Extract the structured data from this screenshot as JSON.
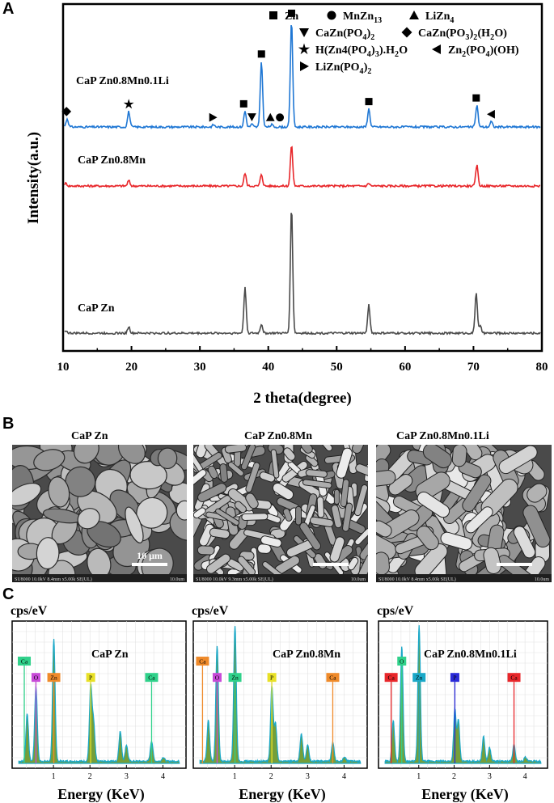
{
  "panels": {
    "a": "A",
    "b": "B",
    "c": "C"
  },
  "colors": {
    "blue": "#1f77d4",
    "red": "#e8262a",
    "gray": "#4a4a4a",
    "green": "#6e9a2e",
    "cyan": "#1aa8c8"
  },
  "chart_data": [
    {
      "type": "line",
      "xlabel": "2 theta(degree)",
      "ylabel": "Intensity(a.u.)",
      "xlim": [
        10,
        80
      ],
      "xticks": [
        "10",
        "20",
        "30",
        "40",
        "50",
        "60",
        "70",
        "80"
      ],
      "legend": [
        {
          "marker": "square",
          "label": "Zn"
        },
        {
          "marker": "circle",
          "label": "MnZn",
          "sub": "13"
        },
        {
          "marker": "triangle-up",
          "label": "LiZn",
          "sub": "4"
        },
        {
          "marker": "triangle-down",
          "label": "CaZn(PO",
          "sub": "4",
          "tail": ")",
          "sub2": "2"
        },
        {
          "marker": "diamond",
          "label": "CaZn(PO",
          "sub": "3",
          "tail": ")",
          "sub2": "2",
          "tail2": "(H",
          "sub3": "2",
          "tail3": "O)"
        },
        {
          "marker": "star",
          "label": "H(Zn4(PO",
          "sub": "4",
          "tail": ")",
          "sub2": "3",
          "tail2": ").H",
          "sub3": "2",
          "tail3": "O"
        },
        {
          "marker": "triangle-left",
          "label": "Zn",
          "sub": "2",
          "tail": "(PO",
          "sub2": "4",
          "tail2": ")(OH)"
        },
        {
          "marker": "triangle-right",
          "label": "LiZn(PO",
          "sub": "4",
          "tail": ")",
          "sub2": "2"
        }
      ],
      "series": [
        {
          "name": "CaP Zn0.8Mn0.1Li",
          "color": "#1f77d4",
          "peaks": [
            [
              10.6,
              0.18
            ],
            [
              19.6,
              0.34
            ],
            [
              32.0,
              0.05
            ],
            [
              36.6,
              0.35
            ],
            [
              37.6,
              0.06
            ],
            [
              39.0,
              1.45
            ],
            [
              40.5,
              0.05
            ],
            [
              43.4,
              2.35
            ],
            [
              54.7,
              0.4
            ],
            [
              70.5,
              0.48
            ],
            [
              72.6,
              0.12
            ]
          ]
        },
        {
          "name": "CaP Zn0.8Mn",
          "color": "#e8262a",
          "peaks": [
            [
              10.4,
              0.06
            ],
            [
              19.6,
              0.12
            ],
            [
              36.6,
              0.28
            ],
            [
              39.0,
              0.26
            ],
            [
              43.4,
              0.9
            ],
            [
              54.7,
              0.06
            ],
            [
              70.5,
              0.46
            ]
          ]
        },
        {
          "name": "CaP Zn",
          "color": "#4a4a4a",
          "peaks": [
            [
              10.4,
              0.06
            ],
            [
              19.6,
              0.14
            ],
            [
              36.6,
              1.0
            ],
            [
              39.0,
              0.2
            ],
            [
              43.4,
              2.78
            ],
            [
              54.7,
              0.62
            ],
            [
              70.4,
              0.9
            ],
            [
              71.0,
              0.15
            ]
          ]
        }
      ],
      "markers": [
        {
          "shape": "diamond",
          "x": 10.5
        },
        {
          "shape": "star",
          "x": 19.6
        },
        {
          "shape": "triangle-right",
          "x": 31.9
        },
        {
          "shape": "square",
          "x": 36.4
        },
        {
          "shape": "triangle-down",
          "x": 37.6
        },
        {
          "shape": "square",
          "x": 39.0
        },
        {
          "shape": "triangle-up",
          "x": 40.3
        },
        {
          "shape": "circle",
          "x": 41.7
        },
        {
          "shape": "square",
          "x": 43.4
        },
        {
          "shape": "square",
          "x": 54.7
        },
        {
          "shape": "square",
          "x": 70.4
        },
        {
          "shape": "triangle-left",
          "x": 72.6
        }
      ]
    },
    {
      "type": "area",
      "title": "CaP Zn",
      "ylabel": "cps/eV",
      "xlabel": "Energy (KeV)",
      "xlim": [
        0,
        4.5
      ],
      "xticks": [
        "1",
        "2",
        "3",
        "4"
      ],
      "peaks": [
        [
          0.28,
          0.35
        ],
        [
          0.52,
          0.55
        ],
        [
          1.01,
          0.9
        ],
        [
          2.02,
          0.55
        ],
        [
          2.1,
          0.28
        ],
        [
          2.83,
          0.22
        ],
        [
          3.0,
          0.12
        ],
        [
          3.69,
          0.15
        ],
        [
          4.01,
          0.03
        ]
      ],
      "labels": [
        {
          "text": "Ca",
          "x": 0.2,
          "level": 0.72,
          "color": "#2fd18a"
        },
        {
          "text": "O",
          "x": 0.52,
          "level": 0.6,
          "color": "#c84ad8"
        },
        {
          "text": "Zn",
          "x": 1.01,
          "level": 0.6,
          "color": "#ef8a2a"
        },
        {
          "text": "P",
          "x": 2.02,
          "level": 0.6,
          "color": "#e8e026"
        },
        {
          "text": "Ca",
          "x": 3.69,
          "level": 0.6,
          "color": "#2fd18a"
        }
      ]
    },
    {
      "type": "area",
      "title": "CaP Zn0.8Mn",
      "ylabel": "cps/eV",
      "xlabel": "Energy (KeV)",
      "xlim": [
        0,
        4.5
      ],
      "xticks": [
        "1",
        "2",
        "3",
        "4"
      ],
      "peaks": [
        [
          0.28,
          0.3
        ],
        [
          0.52,
          0.85
        ],
        [
          1.01,
          1.0
        ],
        [
          2.02,
          0.55
        ],
        [
          2.12,
          0.28
        ],
        [
          2.83,
          0.2
        ],
        [
          3.0,
          0.12
        ],
        [
          3.69,
          0.14
        ],
        [
          4.01,
          0.03
        ]
      ],
      "labels": [
        {
          "text": "Ca",
          "x": 0.12,
          "level": 0.72,
          "color": "#ef8a2a"
        },
        {
          "text": "O",
          "x": 0.52,
          "level": 0.6,
          "color": "#c84ad8"
        },
        {
          "text": "Zn",
          "x": 1.01,
          "level": 0.6,
          "color": "#2fd18a"
        },
        {
          "text": "P",
          "x": 2.02,
          "level": 0.6,
          "color": "#e8e026"
        },
        {
          "text": "Ca",
          "x": 3.69,
          "level": 0.6,
          "color": "#ef8a2a"
        }
      ]
    },
    {
      "type": "area",
      "title": "CaP Zn0.8Mn0.1Li",
      "ylabel": "cps/eV",
      "xlabel": "Energy (KeV)",
      "xlim": [
        0,
        4.5
      ],
      "xticks": [
        "1",
        "2",
        "3",
        "4"
      ],
      "peaks": [
        [
          0.28,
          0.3
        ],
        [
          0.52,
          0.85
        ],
        [
          1.01,
          1.0
        ],
        [
          2.02,
          0.38
        ],
        [
          2.12,
          0.3
        ],
        [
          2.83,
          0.18
        ],
        [
          3.0,
          0.1
        ],
        [
          3.69,
          0.12
        ],
        [
          4.01,
          0.03
        ]
      ],
      "labels": [
        {
          "text": "Ca",
          "x": 0.22,
          "level": 0.6,
          "color": "#e8262a"
        },
        {
          "text": "O",
          "x": 0.52,
          "level": 0.72,
          "color": "#2fd18a"
        },
        {
          "text": "Zn",
          "x": 1.01,
          "level": 0.6,
          "color": "#1aa8c8"
        },
        {
          "text": "P",
          "x": 2.02,
          "level": 0.6,
          "color": "#2a2ad8"
        },
        {
          "text": "Ca",
          "x": 3.69,
          "level": 0.6,
          "color": "#e8262a"
        }
      ]
    }
  ],
  "sem": [
    {
      "title": "CaP Zn",
      "scalebar": "10 μm",
      "footer": "SU8000 10.0kV 8.4mm x5.00k SE(UL)",
      "footer_right": "10.0um"
    },
    {
      "title": "CaP Zn0.8Mn",
      "scalebar": "",
      "footer": "SU8000 10.0kV 9.3mm x5.00k SE(UL)",
      "footer_right": "10.0um"
    },
    {
      "title": "CaP Zn0.8Mn0.1Li",
      "scalebar": "",
      "footer": "SU8000 10.0kV 8.4mm x5.00k SE(UL)",
      "footer_right": "10.0um"
    }
  ]
}
